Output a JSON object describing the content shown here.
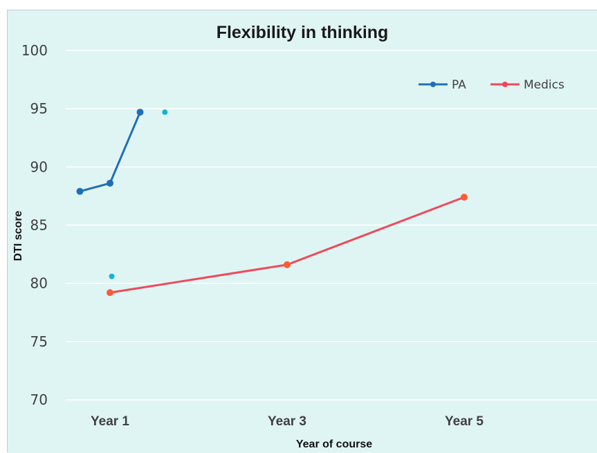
{
  "chart_data": {
    "type": "line",
    "title": "Flexibility in thinking",
    "xlabel": "Year of course",
    "ylabel": "DTI score",
    "categories": [
      "Year 1",
      "Year 3",
      "Year 5"
    ],
    "x_positions": [
      1,
      1.5,
      2,
      2.5,
      3,
      3.5,
      4,
      4.5,
      5,
      5.5
    ],
    "ylim": [
      70,
      100
    ],
    "yticks": [
      "70",
      "75",
      "80",
      "85",
      "90",
      "95",
      "100"
    ],
    "grid": true,
    "legend_position": "top-right",
    "series": [
      {
        "name": "PA",
        "color": "#1f6fb5",
        "points": [
          [
            0.66,
            87.9
          ],
          [
            1.0,
            88.6
          ],
          [
            1.34,
            94.7
          ]
        ]
      },
      {
        "name": "Medics",
        "color": "#f0485a",
        "points": [
          [
            1.0,
            79.2
          ],
          [
            3.0,
            81.6
          ],
          [
            5.0,
            87.4
          ]
        ]
      }
    ],
    "extra_points": {
      "color": "#17b0d8",
      "points": [
        [
          1.02,
          80.6
        ],
        [
          1.62,
          94.7
        ]
      ]
    },
    "colors": {
      "background": "#dff5f3",
      "grid": "#ffffff",
      "medics_marker": "#ff5a36"
    }
  }
}
